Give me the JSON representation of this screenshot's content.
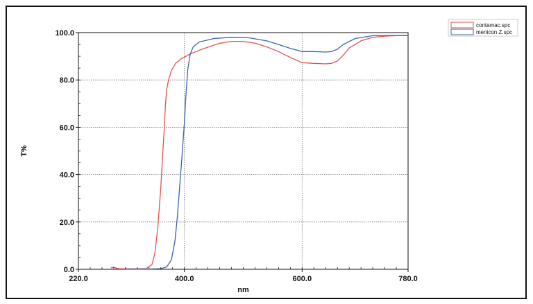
{
  "chart_data": {
    "type": "line",
    "title": "",
    "xlabel": "nm",
    "ylabel": "T%",
    "xlim": [
      220.0,
      780.0
    ],
    "ylim": [
      0.0,
      100.0
    ],
    "x_ticks": [
      220.0,
      400.0,
      600.0,
      780.0
    ],
    "x_tick_labels": [
      "220.0",
      "400.0",
      "600.0",
      "780.0"
    ],
    "y_ticks": [
      0.0,
      20.0,
      40.0,
      60.0,
      80.0,
      100.0
    ],
    "y_tick_labels": [
      "0.0",
      "20.0",
      "40.0",
      "60.0",
      "80.0",
      "100.0"
    ],
    "grid": true,
    "legend_position": "top-right",
    "series": [
      {
        "name": "contamac.spc",
        "color": "#e0524f",
        "points": [
          [
            275,
            0.6
          ],
          [
            280,
            0.9
          ],
          [
            285,
            0.4
          ],
          [
            290,
            0.2
          ],
          [
            300,
            0.2
          ],
          [
            320,
            0.2
          ],
          [
            335,
            0.3
          ],
          [
            345,
            2
          ],
          [
            350,
            7
          ],
          [
            355,
            18
          ],
          [
            360,
            35
          ],
          [
            363,
            48
          ],
          [
            366,
            60
          ],
          [
            368,
            70
          ],
          [
            370,
            76
          ],
          [
            373,
            80
          ],
          [
            378,
            84
          ],
          [
            385,
            87
          ],
          [
            395,
            89
          ],
          [
            410,
            91
          ],
          [
            430,
            93
          ],
          [
            460,
            95.5
          ],
          [
            480,
            96.3
          ],
          [
            500,
            96.3
          ],
          [
            520,
            95.5
          ],
          [
            540,
            94
          ],
          [
            560,
            92
          ],
          [
            580,
            89.5
          ],
          [
            600,
            87.3
          ],
          [
            620,
            87
          ],
          [
            640,
            86.8
          ],
          [
            650,
            87
          ],
          [
            660,
            88
          ],
          [
            670,
            90.5
          ],
          [
            680,
            93.5
          ],
          [
            700,
            96.5
          ],
          [
            720,
            98
          ],
          [
            740,
            98.5
          ],
          [
            760,
            98.7
          ],
          [
            780,
            98.7
          ]
        ]
      },
      {
        "name": "menicon Z.spc",
        "color": "#3b63a8",
        "points": [
          [
            300,
            0.1
          ],
          [
            340,
            0.1
          ],
          [
            360,
            0.3
          ],
          [
            370,
            1
          ],
          [
            378,
            4
          ],
          [
            384,
            12
          ],
          [
            388,
            22
          ],
          [
            392,
            35
          ],
          [
            396,
            48
          ],
          [
            400,
            62
          ],
          [
            403,
            75
          ],
          [
            406,
            85
          ],
          [
            410,
            91
          ],
          [
            415,
            94
          ],
          [
            425,
            96
          ],
          [
            450,
            97.5
          ],
          [
            480,
            98
          ],
          [
            510,
            97.8
          ],
          [
            540,
            96.5
          ],
          [
            560,
            95
          ],
          [
            580,
            93.3
          ],
          [
            600,
            92
          ],
          [
            620,
            92
          ],
          [
            640,
            91.8
          ],
          [
            650,
            92
          ],
          [
            660,
            93
          ],
          [
            670,
            95
          ],
          [
            690,
            97.5
          ],
          [
            720,
            98.7
          ],
          [
            750,
            98.8
          ],
          [
            780,
            98.8
          ]
        ]
      }
    ]
  }
}
